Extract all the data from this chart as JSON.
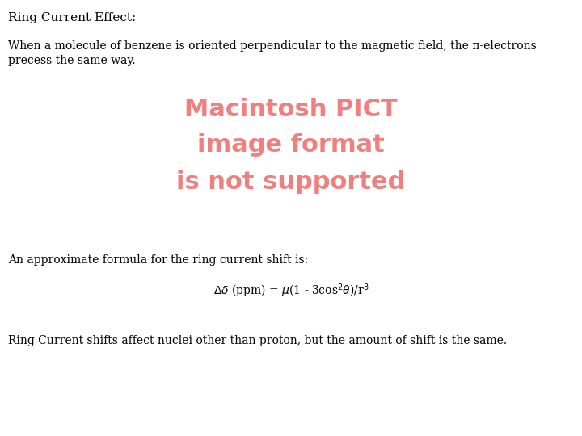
{
  "background_color": "#ffffff",
  "title": "Ring Current Effect:",
  "title_color": "#000000",
  "title_fontsize": 11,
  "paragraph1": "When a molecule of benzene is oriented perpendicular to the magnetic field, the π-electrons\nprecess the same way.",
  "paragraph1_fontsize": 10,
  "pict_line1": "Macintosh PICT",
  "pict_line2": "image format",
  "pict_line3": "is not supported",
  "pict_fontsize": 22,
  "pict_color": "#f08080",
  "paragraph2": "An approximate formula for the ring current shift is:",
  "paragraph2_fontsize": 10,
  "formula_fontsize": 10,
  "paragraph3": "Ring Current shifts affect nuclei other than proton, but the amount of shift is the same.",
  "paragraph3_fontsize": 10
}
